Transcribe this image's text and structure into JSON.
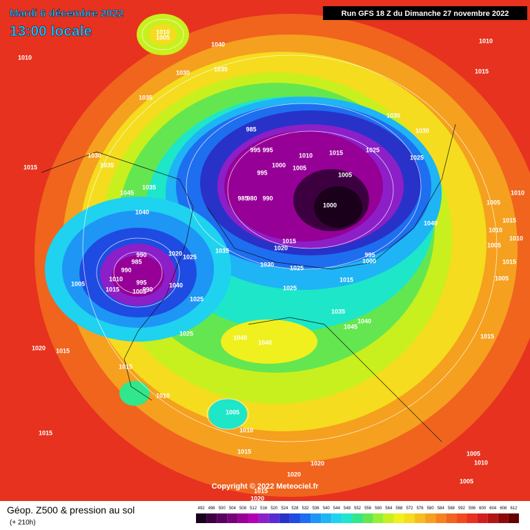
{
  "header": {
    "date": "Mardi 6 décembre 2022",
    "time": "13:00 locale",
    "run": "Run GFS 18 Z du Dimanche 27 novembre 2022"
  },
  "copyright": "Copyright © 2022 Meteociel.fr",
  "footer": {
    "title": "Géop. Z500 & pression au sol",
    "lead": "(+ 210h)"
  },
  "scale": {
    "ticks": [
      492,
      496,
      500,
      504,
      508,
      512,
      516,
      520,
      524,
      528,
      532,
      536,
      540,
      544,
      548,
      552,
      556,
      560,
      564,
      568,
      572,
      576,
      580,
      584,
      588,
      592,
      596,
      600,
      604,
      608,
      612
    ],
    "colors": [
      "#1a001a",
      "#3c0040",
      "#5a0060",
      "#780078",
      "#960096",
      "#b400b4",
      "#8c1fc8",
      "#5a2ad2",
      "#2832c8",
      "#1e4be1",
      "#1e6ef0",
      "#1e96f5",
      "#1eb4f5",
      "#1ed2f0",
      "#1ee6c8",
      "#32e68c",
      "#64e650",
      "#96f032",
      "#c8f01e",
      "#f0f01e",
      "#f5dc1e",
      "#f5be1e",
      "#f5a01e",
      "#f5821e",
      "#f0641e",
      "#f04b1e",
      "#e6321e",
      "#d21e1e",
      "#b41414",
      "#8c0a0a",
      "#640000"
    ]
  },
  "pressure_labels": [
    1010,
    1005,
    1040,
    1030,
    1035,
    1010,
    1035,
    1010,
    1015,
    1030,
    1030,
    985,
    995,
    995,
    1010,
    1015,
    1025,
    1025,
    1000,
    1005,
    995,
    1005,
    985,
    980,
    990,
    1000,
    1030,
    1035,
    1015,
    1035,
    1045,
    1040,
    1040,
    1010,
    1005,
    1015,
    1010,
    1005,
    1010,
    1015,
    1005,
    995,
    1000,
    1015,
    1020,
    1035,
    1030,
    1025,
    1015,
    1025,
    1020,
    1025,
    990,
    985,
    990,
    1010,
    995,
    990,
    1015,
    1005,
    1040,
    1005,
    1025,
    1035,
    1040,
    1045,
    1025,
    1040,
    1040,
    1015,
    1020,
    1015,
    1015,
    1010,
    1005,
    1010,
    1015,
    1015,
    1020,
    1020,
    1005,
    1010,
    1005,
    1015,
    1020
  ]
}
